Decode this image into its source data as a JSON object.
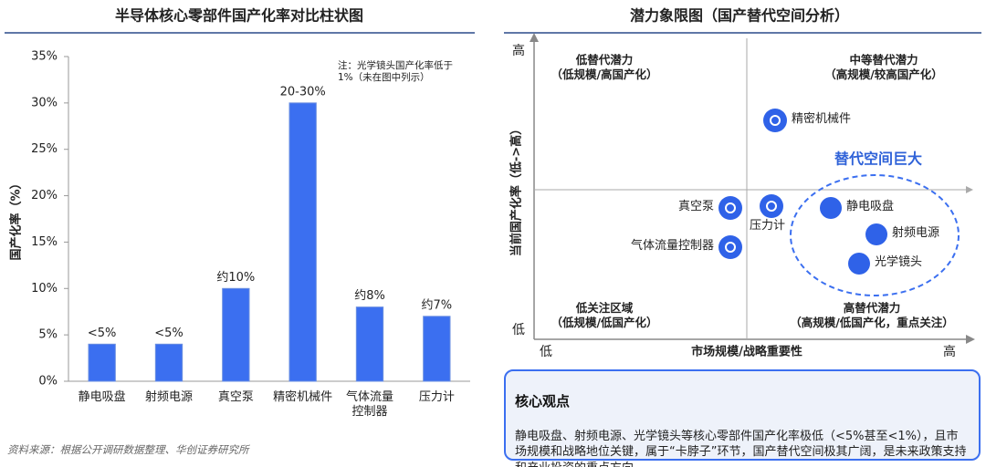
{
  "chart_data": {
    "type": "bar",
    "title": "半导体核心零部件国产化率对比柱状图",
    "y_label": "国产化率（%）",
    "categories": [
      "静电吸盘",
      "射频电源",
      "真空泵",
      "精密机械件",
      "气体流量\n控制器",
      "压力计"
    ],
    "values": [
      4,
      4,
      10,
      30,
      8,
      7
    ],
    "value_labels": [
      "<5%",
      "<5%",
      "约10%",
      "20-30%",
      "约8%",
      "约7%"
    ],
    "color": "#3b6ff0",
    "ylim": [
      0,
      35
    ],
    "yticks": [
      {
        "value": 0,
        "label": "0%"
      },
      {
        "value": 5,
        "label": "5%"
      },
      {
        "value": 10,
        "label": "10%"
      },
      {
        "value": 15,
        "label": "15%"
      },
      {
        "value": 20,
        "label": "20%"
      },
      {
        "value": 25,
        "label": "25%"
      },
      {
        "value": 30,
        "label": "30%"
      },
      {
        "value": 35,
        "label": "35%"
      }
    ],
    "grid": false,
    "note": "注：光学镜头国产化率低于\n1%（未在图中列示）",
    "source": "资料来源：根据公开调研数据整理、华创证券研究所"
  },
  "quadrant": {
    "title": "潜力象限图（国产替代空间分析）",
    "y_axis": {
      "label": "当前国产化率（低->高）",
      "high": "高",
      "low": "低"
    },
    "x_axis": {
      "label": "市场规模/战略重要性",
      "low": "低",
      "high": "高"
    },
    "quadrants": [
      "低替代潜力\n（低规模/高国产化）",
      "中等替代潜力\n（高规模/较高国产化）",
      "低关注区域\n（低规模/低国产化）",
      "高替代潜力\n（高规模/低国产化，重点关注）"
    ],
    "highlight": "替代空间巨大",
    "points": [
      "精密机械件",
      "真空泵",
      "气体流量控制器",
      "压力计",
      "静电吸盘",
      "射频电源",
      "光学镜头"
    ]
  },
  "summary": {
    "title": "核心观点",
    "text": "静电吸盘、射频电源、光学镜头等核心零部件国产化率极低（<5%甚至<1%），且市场规模和战略地位关键，属于“卡脖子”环节，国产替代空间极其广阔，是未来政策支持和产业投资的重点方向。"
  }
}
